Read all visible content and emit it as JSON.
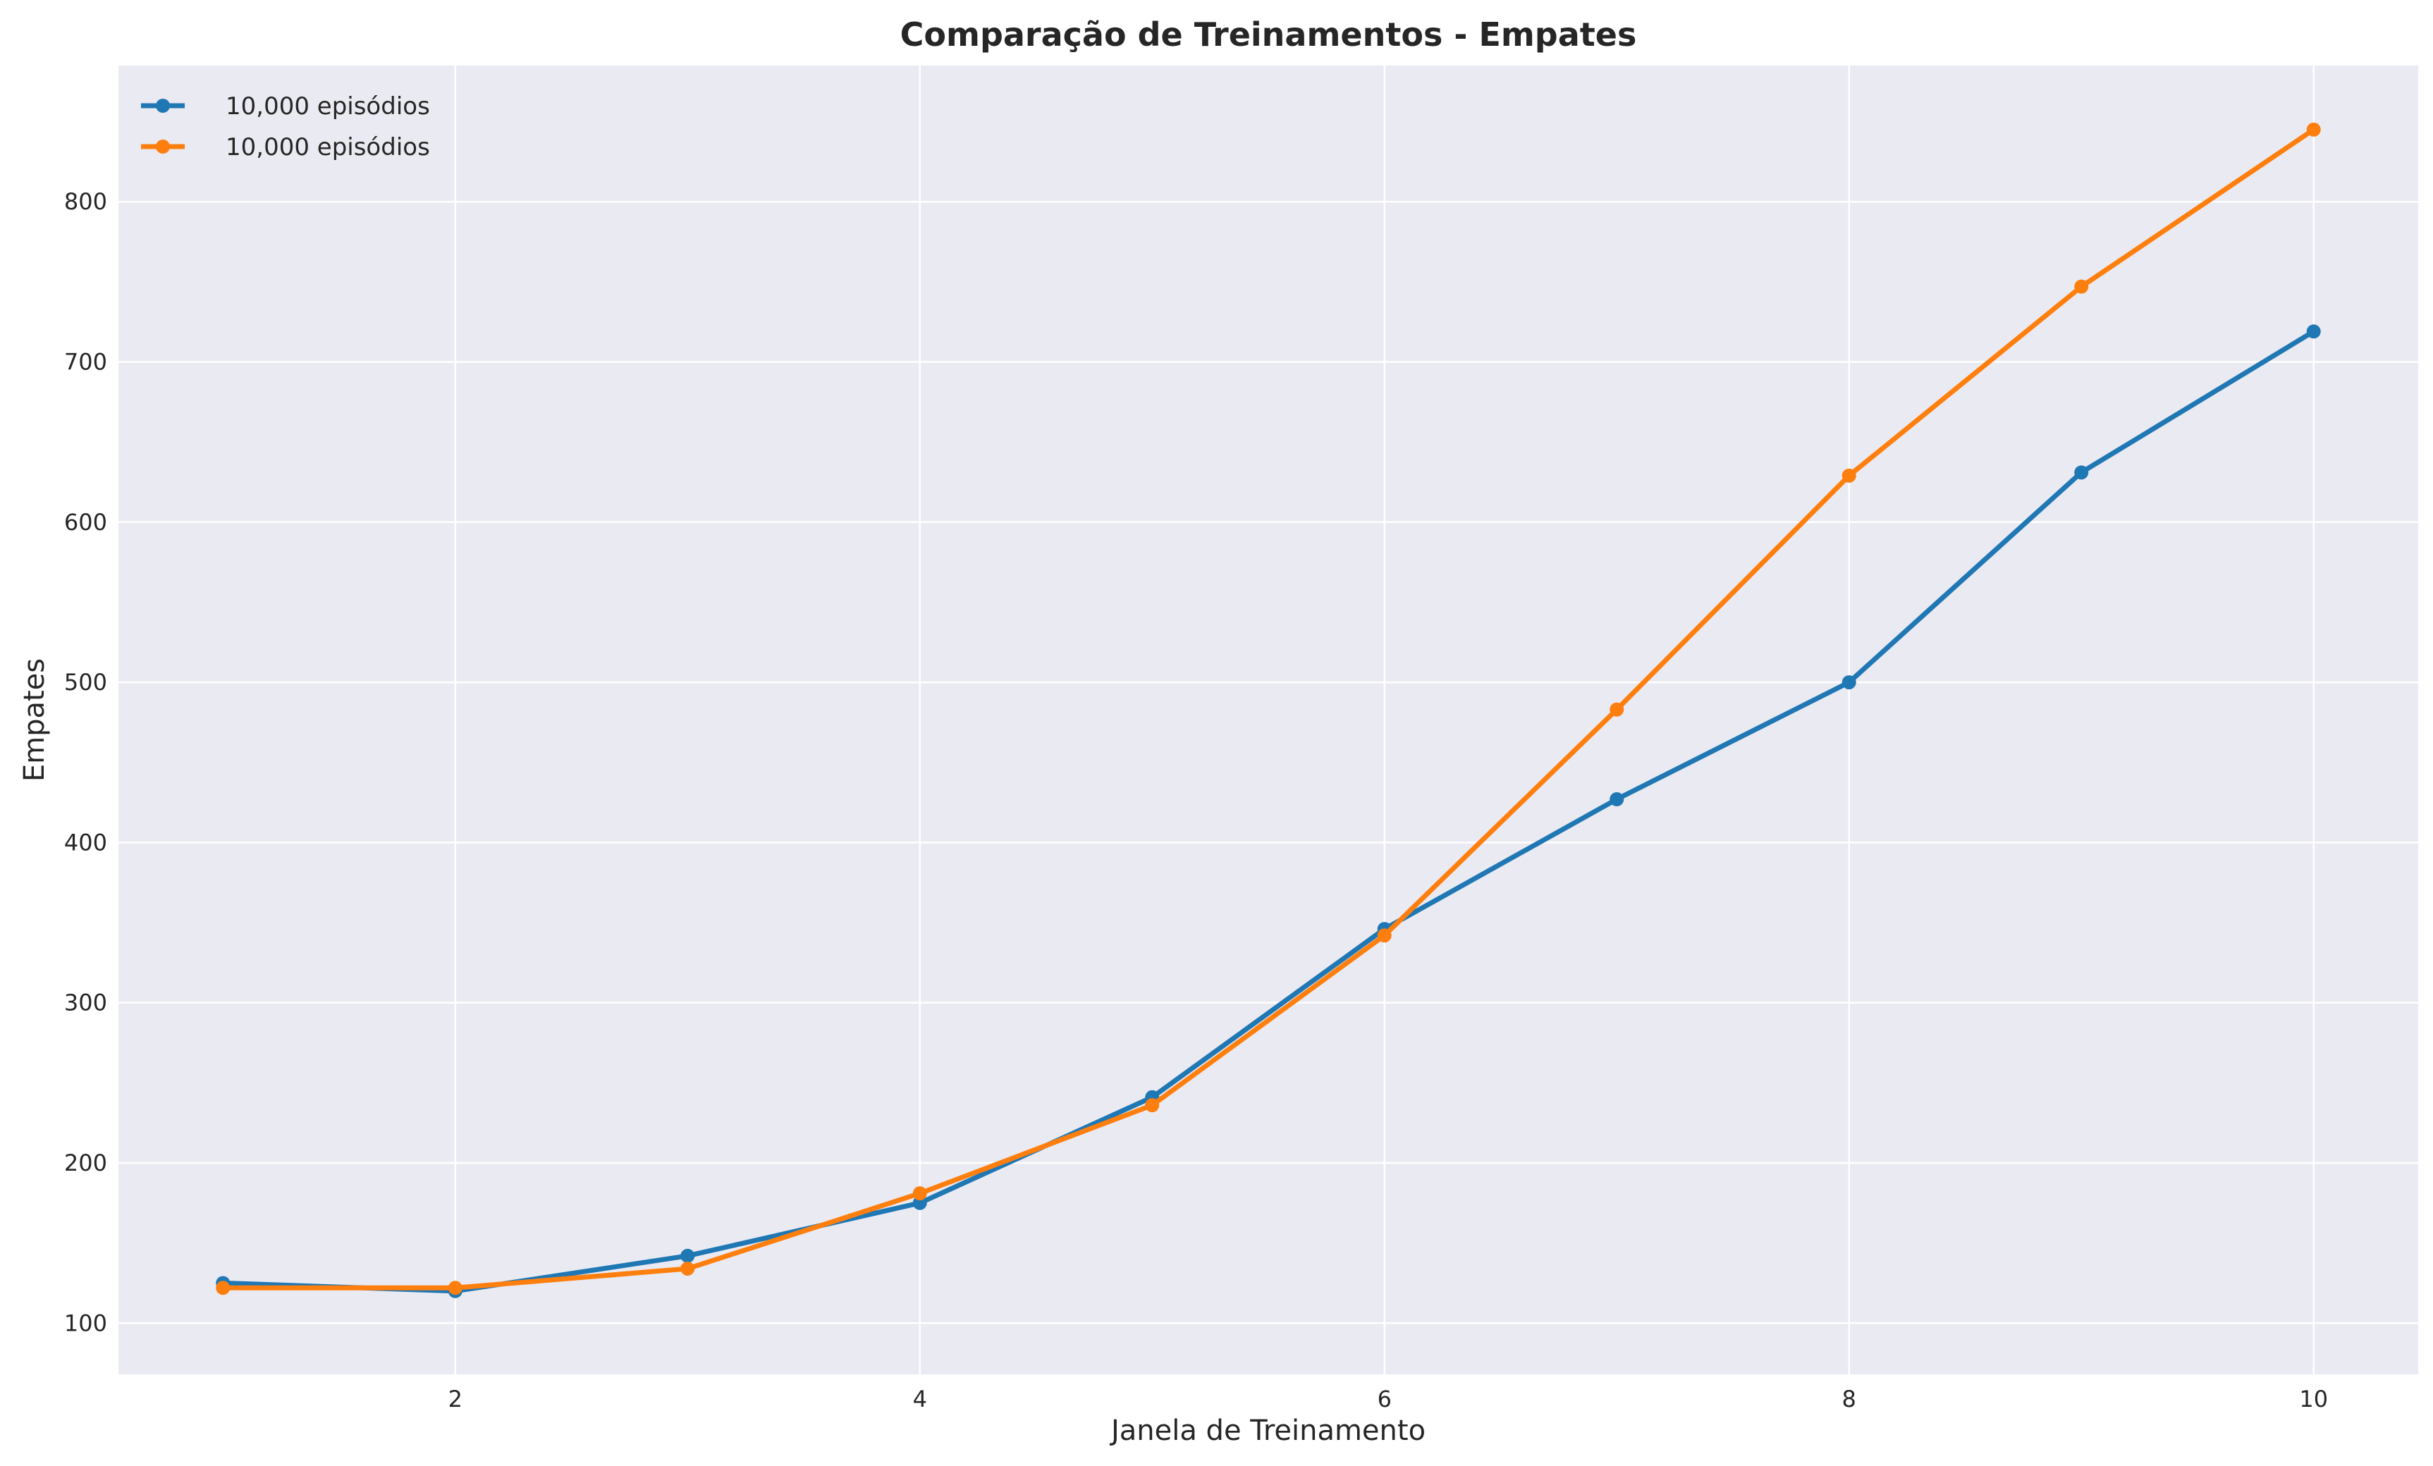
{
  "chart_data": {
    "type": "line",
    "title": "Comparação de Treinamentos - Empates",
    "xlabel": "Janela de Treinamento",
    "ylabel": "Empates",
    "x": [
      1,
      2,
      3,
      4,
      5,
      6,
      7,
      8,
      9,
      10
    ],
    "xlim": [
      0.55,
      10.45
    ],
    "ylim": [
      68,
      885
    ],
    "xticks": [
      2,
      4,
      6,
      8,
      10
    ],
    "yticks": [
      100,
      200,
      300,
      400,
      500,
      600,
      700,
      800
    ],
    "grid": true,
    "legend_position": "top-left",
    "series": [
      {
        "name": "10,000 episódios",
        "color": "#1f77b4",
        "values": [
          125,
          120,
          142,
          175,
          241,
          346,
          427,
          500,
          631,
          719
        ]
      },
      {
        "name": "10,000 episódios",
        "color": "#ff7f0e",
        "values": [
          122,
          122,
          134,
          181,
          236,
          342,
          483,
          629,
          747,
          845
        ]
      }
    ],
    "background_color": "#eaeaf2"
  }
}
